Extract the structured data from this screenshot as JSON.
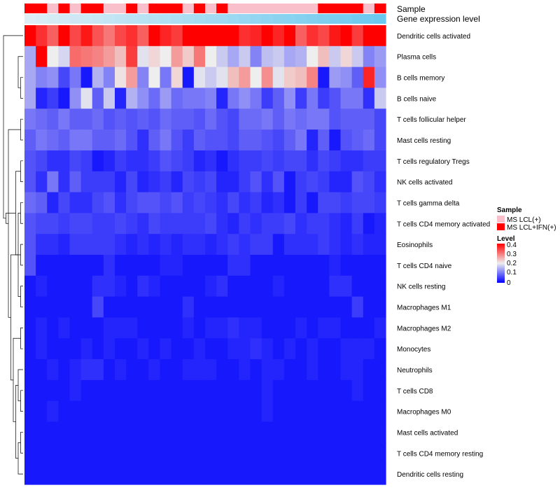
{
  "chart_data": {
    "type": "heatmap",
    "title": "",
    "annotation_tracks": [
      {
        "name": "Sample",
        "values": [
          "MS LCL+IFN(+)",
          "MS LCL+IFN(+)",
          "MS LCL(+)",
          "MS LCL+IFN(+)",
          "MS LCL(+)",
          "MS LCL+IFN(+)",
          "MS LCL+IFN(+)",
          "MS LCL(+)",
          "MS LCL(+)",
          "MS LCL+IFN(+)",
          "MS LCL(+)",
          "MS LCL+IFN(+)",
          "MS LCL+IFN(+)",
          "MS LCL+IFN(+)",
          "MS LCL(+)",
          "MS LCL+IFN(+)",
          "MS LCL(+)",
          "MS LCL+IFN(+)",
          "MS LCL(+)",
          "MS LCL(+)",
          "MS LCL(+)",
          "MS LCL(+)",
          "MS LCL(+)",
          "MS LCL(+)",
          "MS LCL(+)",
          "MS LCL(+)",
          "MS LCL+IFN(+)",
          "MS LCL+IFN(+)",
          "MS LCL+IFN(+)",
          "MS LCL+IFN(+)",
          "MS LCL(+)",
          "MS LCL+IFN(+)"
        ]
      },
      {
        "name": "Gene expression level",
        "type": "gradient",
        "from": "#ddeef6",
        "to": "#6cc8ee"
      }
    ],
    "columns": 32,
    "rows": [
      "Dendritic cells activated",
      "Plasma cells",
      "B cells memory",
      "B cells naive",
      "T cells follicular helper",
      "Mast cells resting",
      "T cells regulatory  Tregs",
      "NK cells activated",
      "T cells gamma delta",
      "T cells CD4 memory activated",
      "Eosinophils",
      "T cells CD4 naive",
      "NK cells resting",
      "Macrophages M1",
      "Macrophages M2",
      "Monocytes",
      "Neutrophils",
      "T cells CD8",
      "Macrophages M0",
      "Mast cells activated",
      "T cells CD4 memory resting",
      "Dendritic cells resting"
    ],
    "values": [
      [
        0.4,
        0.36,
        0.32,
        0.4,
        0.34,
        0.38,
        0.33,
        0.3,
        0.34,
        0.36,
        0.32,
        0.4,
        0.37,
        0.35,
        0.4,
        0.4,
        0.4,
        0.4,
        0.4,
        0.36,
        0.37,
        0.4,
        0.37,
        0.4,
        0.32,
        0.36,
        0.34,
        0.38,
        0.4,
        0.35,
        0.4,
        0.4
      ],
      [
        0.14,
        0.4,
        0.2,
        0.18,
        0.31,
        0.3,
        0.29,
        0.27,
        0.24,
        0.35,
        0.19,
        0.22,
        0.2,
        0.27,
        0.23,
        0.3,
        0.2,
        0.17,
        0.14,
        0.17,
        0.11,
        0.16,
        0.17,
        0.14,
        0.15,
        0.2,
        0.24,
        0.17,
        0.22,
        0.17,
        0.11,
        0.13
      ],
      [
        0.14,
        0.11,
        0.12,
        0.06,
        0.1,
        0.02,
        0.15,
        0.11,
        0.21,
        0.27,
        0.11,
        0.2,
        0.1,
        0.22,
        0.02,
        0.19,
        0.17,
        0.19,
        0.24,
        0.27,
        0.2,
        0.28,
        0.19,
        0.23,
        0.24,
        0.29,
        0.02,
        0.13,
        0.12,
        0.08,
        0.37,
        0.12
      ],
      [
        0.14,
        0.03,
        0.05,
        0.02,
        0.12,
        0.19,
        0.08,
        0.17,
        0.03,
        0.15,
        0.12,
        0.09,
        0.13,
        0.09,
        0.1,
        0.1,
        0.11,
        0.03,
        0.1,
        0.12,
        0.1,
        0.05,
        0.08,
        0.12,
        0.05,
        0.1,
        0.05,
        0.07,
        0.1,
        0.1,
        0.04,
        0.17
      ],
      [
        0.1,
        0.09,
        0.08,
        0.1,
        0.08,
        0.08,
        0.09,
        0.07,
        0.08,
        0.07,
        0.08,
        0.07,
        0.09,
        0.08,
        0.08,
        0.07,
        0.09,
        0.07,
        0.06,
        0.09,
        0.09,
        0.1,
        0.08,
        0.1,
        0.09,
        0.1,
        0.1,
        0.07,
        0.08,
        0.08,
        0.08,
        0.06
      ],
      [
        0.08,
        0.1,
        0.09,
        0.08,
        0.1,
        0.1,
        0.08,
        0.08,
        0.09,
        0.07,
        0.04,
        0.08,
        0.1,
        0.07,
        0.05,
        0.08,
        0.07,
        0.07,
        0.06,
        0.08,
        0.08,
        0.07,
        0.06,
        0.08,
        0.1,
        0.03,
        0.08,
        0.02,
        0.07,
        0.08,
        0.09,
        0.06
      ],
      [
        0.07,
        0.06,
        0.04,
        0.04,
        0.06,
        0.05,
        0.02,
        0.03,
        0.05,
        0.04,
        0.04,
        0.05,
        0.07,
        0.06,
        0.05,
        0.03,
        0.04,
        0.02,
        0.04,
        0.05,
        0.05,
        0.06,
        0.05,
        0.06,
        0.06,
        0.04,
        0.06,
        0.05,
        0.04,
        0.04,
        0.05,
        0.05
      ],
      [
        0.07,
        0.04,
        0.1,
        0.04,
        0.08,
        0.05,
        0.05,
        0.05,
        0.03,
        0.06,
        0.03,
        0.04,
        0.05,
        0.03,
        0.06,
        0.05,
        0.06,
        0.03,
        0.03,
        0.05,
        0.07,
        0.04,
        0.07,
        0.02,
        0.05,
        0.06,
        0.05,
        0.03,
        0.03,
        0.07,
        0.06,
        0.04
      ],
      [
        0.09,
        0.08,
        0.03,
        0.06,
        0.04,
        0.04,
        0.06,
        0.07,
        0.04,
        0.06,
        0.07,
        0.07,
        0.06,
        0.07,
        0.05,
        0.06,
        0.05,
        0.04,
        0.06,
        0.04,
        0.05,
        0.03,
        0.04,
        0.02,
        0.05,
        0.02,
        0.06,
        0.06,
        0.05,
        0.06,
        0.06,
        0.05
      ],
      [
        0.07,
        0.06,
        0.06,
        0.05,
        0.06,
        0.06,
        0.05,
        0.05,
        0.06,
        0.05,
        0.04,
        0.06,
        0.05,
        0.05,
        0.05,
        0.05,
        0.06,
        0.04,
        0.03,
        0.05,
        0.04,
        0.05,
        0.05,
        0.06,
        0.04,
        0.05,
        0.05,
        0.04,
        0.03,
        0.05,
        0.02,
        0.03
      ],
      [
        0.07,
        0.04,
        0.04,
        0.03,
        0.05,
        0.05,
        0.05,
        0.05,
        0.04,
        0.03,
        0.04,
        0.03,
        0.04,
        0.03,
        0.04,
        0.04,
        0.03,
        0.04,
        0.05,
        0.04,
        0.05,
        0.05,
        0.02,
        0.04,
        0.04,
        0.04,
        0.05,
        0.04,
        0.03,
        0.04,
        0.03,
        0.03
      ],
      [
        0.07,
        0.02,
        0.02,
        0.02,
        0.02,
        0.02,
        0.02,
        0.04,
        0.02,
        0.02,
        0.02,
        0.02,
        0.03,
        0.03,
        0.02,
        0.02,
        0.02,
        0.02,
        0.04,
        0.04,
        0.02,
        0.02,
        0.02,
        0.02,
        0.02,
        0.02,
        0.02,
        0.03,
        0.02,
        0.02,
        0.02,
        0.02
      ],
      [
        0.02,
        0.03,
        0.02,
        0.02,
        0.02,
        0.02,
        0.04,
        0.04,
        0.03,
        0.02,
        0.04,
        0.03,
        0.02,
        0.02,
        0.02,
        0.02,
        0.03,
        0.04,
        0.02,
        0.02,
        0.02,
        0.02,
        0.03,
        0.02,
        0.02,
        0.02,
        0.02,
        0.04,
        0.04,
        0.02,
        0.02,
        0.02
      ],
      [
        0.02,
        0.02,
        0.02,
        0.02,
        0.02,
        0.02,
        0.06,
        0.02,
        0.02,
        0.02,
        0.02,
        0.02,
        0.02,
        0.02,
        0.04,
        0.02,
        0.02,
        0.02,
        0.02,
        0.02,
        0.02,
        0.02,
        0.02,
        0.02,
        0.02,
        0.02,
        0.02,
        0.02,
        0.02,
        0.05,
        0.02,
        0.02
      ],
      [
        0.02,
        0.03,
        0.02,
        0.03,
        0.02,
        0.02,
        0.02,
        0.03,
        0.03,
        0.03,
        0.02,
        0.02,
        0.02,
        0.02,
        0.03,
        0.02,
        0.03,
        0.03,
        0.04,
        0.03,
        0.03,
        0.02,
        0.02,
        0.02,
        0.03,
        0.02,
        0.03,
        0.03,
        0.02,
        0.02,
        0.02,
        0.03
      ],
      [
        0.02,
        0.03,
        0.02,
        0.02,
        0.02,
        0.03,
        0.02,
        0.03,
        0.02,
        0.02,
        0.03,
        0.02,
        0.03,
        0.02,
        0.02,
        0.03,
        0.02,
        0.02,
        0.03,
        0.03,
        0.04,
        0.03,
        0.02,
        0.03,
        0.02,
        0.03,
        0.02,
        0.02,
        0.03,
        0.03,
        0.03,
        0.02
      ],
      [
        0.02,
        0.02,
        0.03,
        0.02,
        0.03,
        0.04,
        0.04,
        0.02,
        0.03,
        0.02,
        0.02,
        0.03,
        0.02,
        0.02,
        0.03,
        0.03,
        0.03,
        0.02,
        0.02,
        0.03,
        0.02,
        0.03,
        0.03,
        0.02,
        0.02,
        0.03,
        0.02,
        0.02,
        0.03,
        0.03,
        0.02,
        0.02
      ],
      [
        0.02,
        0.02,
        0.02,
        0.02,
        0.03,
        0.02,
        0.02,
        0.02,
        0.02,
        0.02,
        0.02,
        0.02,
        0.02,
        0.02,
        0.02,
        0.02,
        0.02,
        0.02,
        0.02,
        0.02,
        0.02,
        0.03,
        0.02,
        0.02,
        0.02,
        0.02,
        0.02,
        0.02,
        0.02,
        0.03,
        0.02,
        0.02
      ],
      [
        0.02,
        0.02,
        0.03,
        0.02,
        0.02,
        0.02,
        0.02,
        0.02,
        0.02,
        0.02,
        0.02,
        0.02,
        0.02,
        0.02,
        0.02,
        0.02,
        0.02,
        0.02,
        0.02,
        0.02,
        0.02,
        0.03,
        0.02,
        0.02,
        0.02,
        0.02,
        0.02,
        0.02,
        0.02,
        0.02,
        0.02,
        0.02
      ],
      [
        0.02,
        0.02,
        0.02,
        0.02,
        0.02,
        0.02,
        0.02,
        0.02,
        0.02,
        0.02,
        0.02,
        0.02,
        0.02,
        0.02,
        0.02,
        0.02,
        0.02,
        0.02,
        0.02,
        0.02,
        0.02,
        0.02,
        0.02,
        0.02,
        0.02,
        0.02,
        0.02,
        0.02,
        0.02,
        0.02,
        0.02,
        0.02
      ],
      [
        0.02,
        0.02,
        0.02,
        0.02,
        0.02,
        0.02,
        0.02,
        0.02,
        0.02,
        0.02,
        0.02,
        0.02,
        0.02,
        0.02,
        0.02,
        0.02,
        0.02,
        0.02,
        0.02,
        0.02,
        0.02,
        0.02,
        0.02,
        0.02,
        0.02,
        0.02,
        0.02,
        0.02,
        0.02,
        0.02,
        0.02,
        0.02
      ],
      [
        0.02,
        0.02,
        0.02,
        0.02,
        0.02,
        0.02,
        0.02,
        0.02,
        0.02,
        0.02,
        0.02,
        0.02,
        0.02,
        0.02,
        0.02,
        0.02,
        0.02,
        0.02,
        0.02,
        0.02,
        0.02,
        0.02,
        0.02,
        0.02,
        0.02,
        0.02,
        0.02,
        0.02,
        0.02,
        0.02,
        0.02,
        0.02
      ]
    ],
    "color_scale": {
      "stops": [
        {
          "value": 0,
          "color": "#0000ff"
        },
        {
          "value": 0.2,
          "color": "#eeeeee"
        },
        {
          "value": 0.4,
          "color": "#ff0000"
        }
      ]
    },
    "dendrogram": {
      "rows": {
        "side": "left",
        "merges": [
          [
            19,
            20
          ],
          [
            17,
            18
          ],
          [
            21,
            "A"
          ],
          [
            16,
            "B"
          ],
          [
            "C",
            "D"
          ],
          [
            14,
            15
          ],
          [
            12,
            13
          ],
          [
            "E",
            "F"
          ],
          [
            10,
            11
          ],
          [
            8,
            9
          ],
          [
            "H",
            "I"
          ],
          [
            "G",
            "J"
          ],
          [
            6,
            7
          ],
          [
            4,
            5
          ],
          [
            "L",
            "M"
          ],
          [
            "K",
            "N"
          ],
          [
            2,
            3
          ],
          [
            "O",
            "P"
          ],
          [
            1,
            "Q"
          ],
          [
            0,
            "R"
          ]
        ]
      }
    },
    "legends": [
      {
        "title": "Sample",
        "type": "categorical",
        "entries": [
          {
            "label": "MS LCL(+)",
            "color": "#f9c0cb"
          },
          {
            "label": "MS LCL+IFN(+)",
            "color": "#ff0000"
          }
        ]
      },
      {
        "title": "Level",
        "type": "continuous",
        "ticks": [
          "0.4",
          "0.3",
          "0.2",
          "0.1",
          "0"
        ]
      }
    ],
    "legend_position": "right"
  },
  "colors": {
    "high": "#ff0000",
    "mid": "#eeeeee",
    "low": "#0000ff",
    "sample_a": "#f9c0cb",
    "sample_b": "#ff0000"
  }
}
